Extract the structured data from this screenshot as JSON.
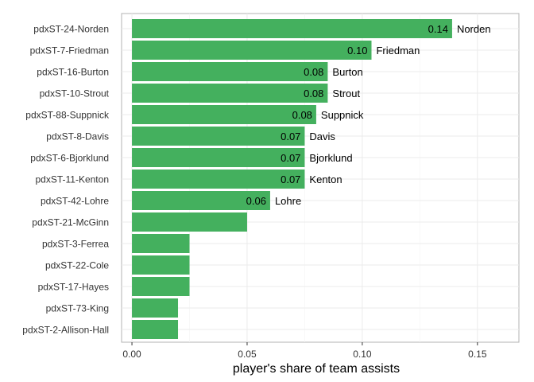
{
  "chart_data": {
    "type": "bar",
    "orientation": "horizontal",
    "xlabel": "player's share of team assists",
    "ylabel": "",
    "xlim": [
      -0.0045,
      0.168
    ],
    "xticks": [
      0.0,
      0.05,
      0.1,
      0.15
    ],
    "xtick_labels": [
      "0.00",
      "0.05",
      "0.10",
      "0.15"
    ],
    "grid": true,
    "bar_color": "#44b05e",
    "categories": [
      "pdxST-24-Norden",
      "pdxST-7-Friedman",
      "pdxST-16-Burton",
      "pdxST-10-Strout",
      "pdxST-88-Suppnick",
      "pdxST-8-Davis",
      "pdxST-6-Bjorklund",
      "pdxST-11-Kenton",
      "pdxST-42-Lohre",
      "pdxST-21-McGinn",
      "pdxST-3-Ferrea",
      "pdxST-22-Cole",
      "pdxST-17-Hayes",
      "pdxST-73-King",
      "pdxST-2-Allison-Hall"
    ],
    "values": [
      0.139,
      0.104,
      0.085,
      0.085,
      0.08,
      0.075,
      0.075,
      0.075,
      0.06,
      0.05,
      0.025,
      0.025,
      0.025,
      0.02,
      0.02
    ],
    "value_labels": [
      "0.14",
      "0.10",
      "0.08",
      "0.08",
      "0.08",
      "0.07",
      "0.07",
      "0.07",
      "0.06",
      "",
      "",
      "",
      "",
      "",
      ""
    ],
    "name_labels": [
      "Norden",
      "Friedman",
      "Burton",
      "Strout",
      "Suppnick",
      "Davis",
      "Bjorklund",
      "Kenton",
      "Lohre",
      "",
      "",
      "",
      "",
      "",
      ""
    ]
  }
}
